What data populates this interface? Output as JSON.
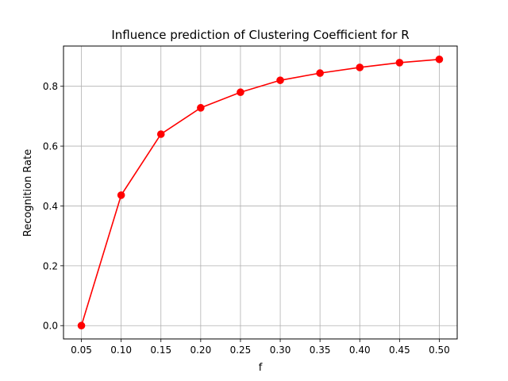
{
  "chart_data": {
    "type": "line",
    "title": "Influence prediction of Clustering Coefficient for R",
    "xlabel": "f",
    "ylabel": "Recognition Rate",
    "x": [
      0.05,
      0.1,
      0.15,
      0.2,
      0.25,
      0.3,
      0.35,
      0.4,
      0.45,
      0.5
    ],
    "x_tick_labels": [
      "0.05",
      "0.10",
      "0.15",
      "0.20",
      "0.25",
      "0.30",
      "0.35",
      "0.40",
      "0.45",
      "0.50"
    ],
    "y_ticks": [
      0.0,
      0.2,
      0.4,
      0.6,
      0.8
    ],
    "y_tick_labels": [
      "0.0",
      "0.2",
      "0.4",
      "0.6",
      "0.8"
    ],
    "series": [
      {
        "values": [
          0.0,
          0.436,
          0.64,
          0.728,
          0.78,
          0.82,
          0.844,
          0.863,
          0.879,
          0.89
        ],
        "color": "#ff0000",
        "marker": "circle"
      }
    ],
    "xlim": [
      0.0275,
      0.5225
    ],
    "ylim": [
      -0.0445,
      0.9345
    ],
    "grid": true,
    "legend": "none"
  }
}
